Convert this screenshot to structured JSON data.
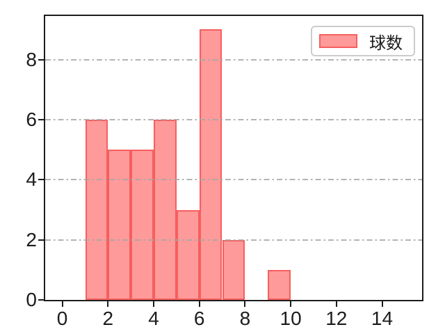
{
  "figure": {
    "background": "#ffffff"
  },
  "chart_data": {
    "type": "bar",
    "subtype": "histogram",
    "title": "",
    "xlabel": "",
    "ylabel": "",
    "series": [
      {
        "name": "球数",
        "bin_edges": [
          1,
          2,
          3,
          4,
          5,
          6,
          7,
          8,
          9,
          10
        ],
        "counts": [
          6,
          5,
          5,
          6,
          3,
          9,
          2,
          0,
          1
        ]
      }
    ],
    "xlim": [
      -0.75,
      15.75
    ],
    "ylim": [
      0,
      9.45
    ],
    "x_ticks": [
      0,
      2,
      4,
      6,
      8,
      10,
      12,
      14
    ],
    "y_ticks": [
      0,
      2,
      4,
      6,
      8
    ],
    "grid": {
      "axis": "y",
      "style": "dash-dot",
      "on": true
    },
    "legend": {
      "label": "球数",
      "position": "upper-right"
    },
    "colors": {
      "bar_fill": "#ff9a9a",
      "bar_edge": "#f75e5e",
      "grid": "#a6a6a6",
      "spine": "#1c1c1c",
      "tick_text": "#1c1c1c",
      "legend_border": "#cccccc",
      "legend_bg": "#ffffff"
    }
  }
}
